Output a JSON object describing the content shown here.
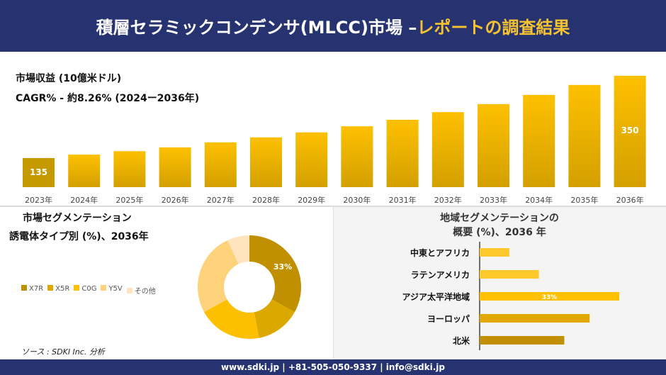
{
  "header": {
    "title_main": "積層セラミックコンデンサ(MLCC)市場 – ",
    "title_accent": "レポートの調査結果"
  },
  "colors": {
    "navy": "#263370",
    "accent": "#f5c230"
  },
  "chart_data": [
    {
      "type": "bar",
      "title": "市場収益 (10億米ドル)",
      "subtitle": "CAGR% - 約8.26% (2024ー2036年)",
      "categories": [
        "2023年",
        "2024年",
        "2025年",
        "2026年",
        "2027年",
        "2028年",
        "2029年",
        "2030年",
        "2031年",
        "2032年",
        "2033年",
        "2034年",
        "2035年",
        "2036年"
      ],
      "values": [
        135,
        144,
        153,
        163,
        176,
        189,
        202,
        218,
        235,
        255,
        276,
        300,
        326,
        350
      ],
      "data_labels": {
        "0": "135",
        "13": "350"
      }
    },
    {
      "type": "pie",
      "title": "市場セグメンテーション",
      "subtitle": "誘電体タイプ別 (%)、2036年",
      "categories": [
        "X7R",
        "X5R",
        "C0G",
        "Y5V",
        "その他"
      ],
      "values": [
        33,
        14,
        20,
        26,
        7
      ],
      "colors": [
        "#c09000",
        "#dba800",
        "#fcc000",
        "#fed27a",
        "#ffe4bd"
      ],
      "data_label": "33%",
      "legend": "left"
    },
    {
      "type": "bar",
      "orientation": "horizontal",
      "title": "地域セグメンテーションの",
      "title2": "概要 (%)、2036 年",
      "categories": [
        "中東とアフリカ",
        "ラテンアメリカ",
        "アジア太平洋地域",
        "ヨーロッパ",
        "北米"
      ],
      "values": [
        7,
        14,
        33,
        26,
        20
      ],
      "colors": [
        "#fdc82b",
        "#fdc82b",
        "#fec000",
        "#e0a800",
        "#c09000"
      ],
      "data_label": "33%"
    }
  ],
  "source": "ソース : SDKI Inc. 分析",
  "footer": "www.sdki.jp | +81-505-050-9337 | info@sdki.jp"
}
